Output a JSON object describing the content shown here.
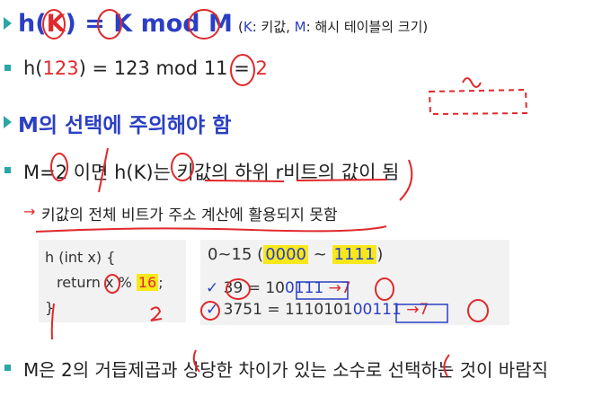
{
  "line1": {
    "formula_h": "h(",
    "formula_k": "K",
    "formula_close": ") = ",
    "formula_k2": "K",
    "formula_mod": " mod ",
    "formula_m": "M",
    "note_open": "(",
    "note_k": "K",
    "note_k_text": ": 키값, ",
    "note_m": "M",
    "note_m_text": ": 해시 테이블의 크기)"
  },
  "line2": {
    "pre": "h(",
    "num": "123",
    "post": ") = 123 mod 11 = ",
    "result": "2"
  },
  "line3": {
    "text": "M의 선택에 주의해야 함"
  },
  "line4": {
    "text": "M=2 이면 h(K)는 키값의 하위 r비트의 값이 됨"
  },
  "line5": {
    "text": "키값의 전체 비트가 주소 계산에 활용되지 못함"
  },
  "code": {
    "line1": "h (int x) {",
    "line2_pre": "return x % ",
    "line2_num": "16",
    "line2_post": ";",
    "line3": "}"
  },
  "binary": {
    "range_pre": "0~15 (",
    "range_low": "0000",
    "range_mid": " ~ ",
    "range_high": "1111",
    "range_post": ")",
    "ex1_pre": "39 = 10",
    "ex1_bits": "0111",
    "ex1_result": "7",
    "ex2_pre": "3751 = 1110101",
    "ex2_bits": "00111",
    "ex2_result": "7"
  },
  "line6": {
    "text": "M은 2의 거듭제곱과 상당한 차이가 있는 소수로 선택하는 것이 바람직"
  },
  "colors": {
    "accent_teal": "#2aa6a6",
    "title_blue": "#2b3fc4",
    "pen_red": "#e0292c",
    "highlight": "#f7e81a"
  }
}
